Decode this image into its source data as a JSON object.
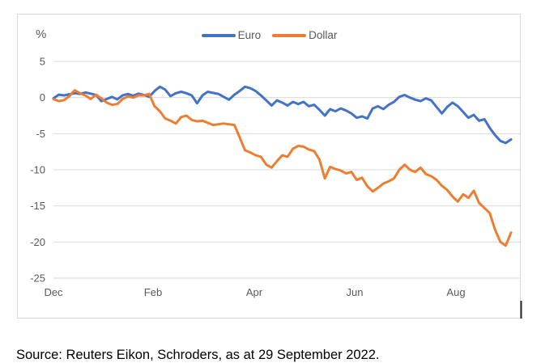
{
  "source_note": "Source: Reuters Eikon, Schroders, as at 29 September 2022.",
  "chart_data": {
    "type": "line",
    "title": "",
    "xlabel": "",
    "ylabel": "%",
    "ylim": [
      -25,
      5
    ],
    "y_ticks": [
      5,
      0,
      -5,
      -10,
      -15,
      -20,
      -25
    ],
    "x_tick_labels": [
      "Dec",
      "Feb",
      "Apr",
      "Jun",
      "Aug"
    ],
    "grid": "horizontal",
    "legend_position": "top-center",
    "colors": {
      "euro": "#4472C4",
      "dollar": "#ED7D31",
      "gridline": "#d9d9d9",
      "axis_text": "#595959",
      "end_tick": "#262626"
    },
    "series": [
      {
        "name": "Euro",
        "color": "#4472C4",
        "values": [
          -0.1,
          0.4,
          0.3,
          0.45,
          0.6,
          0.5,
          0.7,
          0.55,
          0.35,
          -0.5,
          -0.2,
          0.1,
          -0.25,
          0.3,
          0.5,
          0.25,
          0.55,
          0.35,
          0.1,
          0.9,
          1.5,
          1.1,
          0.2,
          0.6,
          0.8,
          0.6,
          0.3,
          -0.8,
          0.3,
          0.8,
          0.65,
          0.5,
          0.1,
          -0.3,
          0.4,
          0.9,
          1.5,
          1.3,
          0.9,
          0.3,
          -0.4,
          -1.1,
          -0.4,
          -0.7,
          -1.1,
          -0.6,
          -0.9,
          -0.6,
          -1.2,
          -1.0,
          -1.7,
          -2.5,
          -1.6,
          -1.9,
          -1.5,
          -1.8,
          -2.2,
          -2.8,
          -2.6,
          -2.9,
          -1.5,
          -1.2,
          -1.6,
          -1.0,
          -0.6,
          0.1,
          0.35,
          0.0,
          -0.3,
          -0.5,
          -0.1,
          -0.4,
          -1.3,
          -2.2,
          -1.3,
          -0.7,
          -1.2,
          -2.0,
          -2.8,
          -2.4,
          -3.2,
          -3.0,
          -4.2,
          -5.2,
          -6.0,
          -6.3,
          -5.8
        ]
      },
      {
        "name": "Dollar",
        "color": "#ED7D31",
        "values": [
          -0.2,
          -0.5,
          -0.35,
          0.2,
          1.0,
          0.6,
          0.3,
          -0.2,
          0.4,
          -0.1,
          -0.7,
          -1.0,
          -0.9,
          -0.2,
          0.15,
          0.0,
          0.3,
          0.3,
          0.5,
          -1.2,
          -1.9,
          -2.9,
          -3.2,
          -3.6,
          -2.7,
          -2.5,
          -3.1,
          -3.3,
          -3.2,
          -3.5,
          -3.8,
          -3.7,
          -3.6,
          -3.7,
          -3.8,
          -5.5,
          -7.3,
          -7.6,
          -8.0,
          -8.2,
          -9.3,
          -9.7,
          -8.8,
          -8.0,
          -8.2,
          -7.1,
          -6.7,
          -6.8,
          -7.2,
          -7.4,
          -8.6,
          -11.2,
          -9.6,
          -9.9,
          -10.1,
          -10.5,
          -10.3,
          -11.4,
          -11.1,
          -12.3,
          -13.0,
          -12.5,
          -11.9,
          -11.6,
          -11.2,
          -10.0,
          -9.3,
          -10.0,
          -10.3,
          -9.7,
          -10.6,
          -10.9,
          -11.4,
          -12.2,
          -12.8,
          -13.7,
          -14.4,
          -13.4,
          -13.9,
          -12.9,
          -14.6,
          -15.3,
          -16.0,
          -18.3,
          -20.0,
          -20.5,
          -18.7
        ]
      }
    ]
  }
}
